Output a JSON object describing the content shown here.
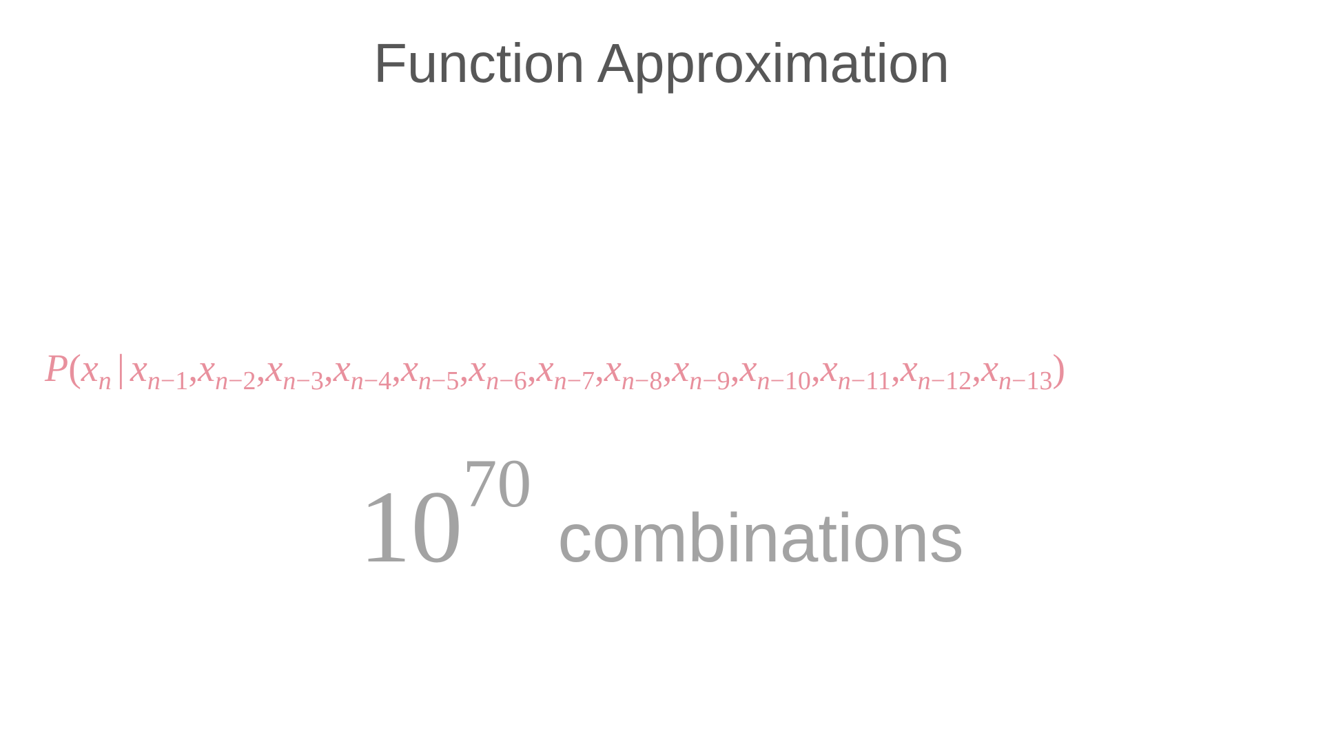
{
  "slide": {
    "title": "Function Approximation",
    "formula": {
      "func": "P",
      "open": "(",
      "var": "x",
      "target_sub": "n",
      "bar": "|",
      "conditions": [
        {
          "var": "x",
          "sub_n": "n",
          "sub_rest": "−1"
        },
        {
          "var": "x",
          "sub_n": "n",
          "sub_rest": "−2"
        },
        {
          "var": "x",
          "sub_n": "n",
          "sub_rest": "−3"
        },
        {
          "var": "x",
          "sub_n": "n",
          "sub_rest": "−4"
        },
        {
          "var": "x",
          "sub_n": "n",
          "sub_rest": "−5"
        },
        {
          "var": "x",
          "sub_n": "n",
          "sub_rest": "−6"
        },
        {
          "var": "x",
          "sub_n": "n",
          "sub_rest": "−7"
        },
        {
          "var": "x",
          "sub_n": "n",
          "sub_rest": "−8"
        },
        {
          "var": "x",
          "sub_n": "n",
          "sub_rest": "−9"
        },
        {
          "var": "x",
          "sub_n": "n",
          "sub_rest": "−10"
        },
        {
          "var": "x",
          "sub_n": "n",
          "sub_rest": "−11"
        },
        {
          "var": "x",
          "sub_n": "n",
          "sub_rest": "−12"
        },
        {
          "var": "x",
          "sub_n": "n",
          "sub_rest": "−13"
        }
      ],
      "separator": ",",
      "close": ")"
    },
    "count": {
      "base": "10",
      "exponent": "70",
      "label": "combinations"
    },
    "colors": {
      "title": "#575757",
      "formula": "#e8909d",
      "count": "#a3a3a3",
      "background": "#ffffff"
    }
  }
}
